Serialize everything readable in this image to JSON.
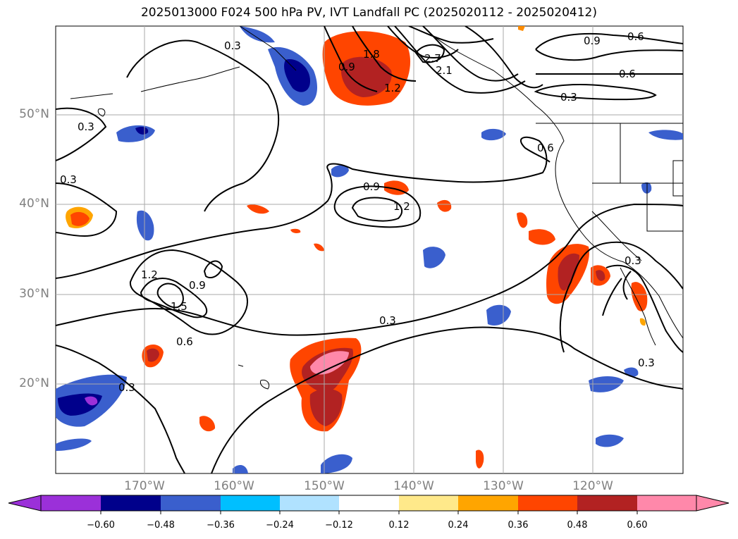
{
  "title": "2025013000 F024 500 hPa PV, IVT Landfall PC (2025020112 - 2025020412)",
  "lat_labels": [
    "50°N",
    "40°N",
    "30°N",
    "20°N"
  ],
  "lon_labels": [
    "170°W",
    "160°W",
    "150°W",
    "140°W",
    "130°W",
    "120°W"
  ],
  "contour_labels": [
    "0.3",
    "0.3",
    "0.3",
    "0.3",
    "0.3",
    "0.3",
    "0.3",
    "0.3",
    "0.6",
    "0.6",
    "0.6",
    "0.6",
    "0.9",
    "0.9",
    "0.9",
    "0.9",
    "1.2",
    "1.2",
    "1.2",
    "1.5",
    "1.8",
    "2.1",
    "2.7"
  ],
  "colorbar": {
    "ticks": [
      "−0.60",
      "−0.48",
      "−0.36",
      "−0.24",
      "−0.12",
      "0.12",
      "0.24",
      "0.36",
      "0.48",
      "0.60"
    ],
    "colors": [
      "#9b30d9",
      "#00008b",
      "#3a5fcd",
      "#00bfff",
      "#b0e2ff",
      "#ffffff",
      "#ffe98a",
      "#ffa500",
      "#ff4500",
      "#b22222",
      "#ff88aa"
    ]
  },
  "legend_fields": [
    "500 hPa PV",
    "IVT Landfall PC"
  ]
}
